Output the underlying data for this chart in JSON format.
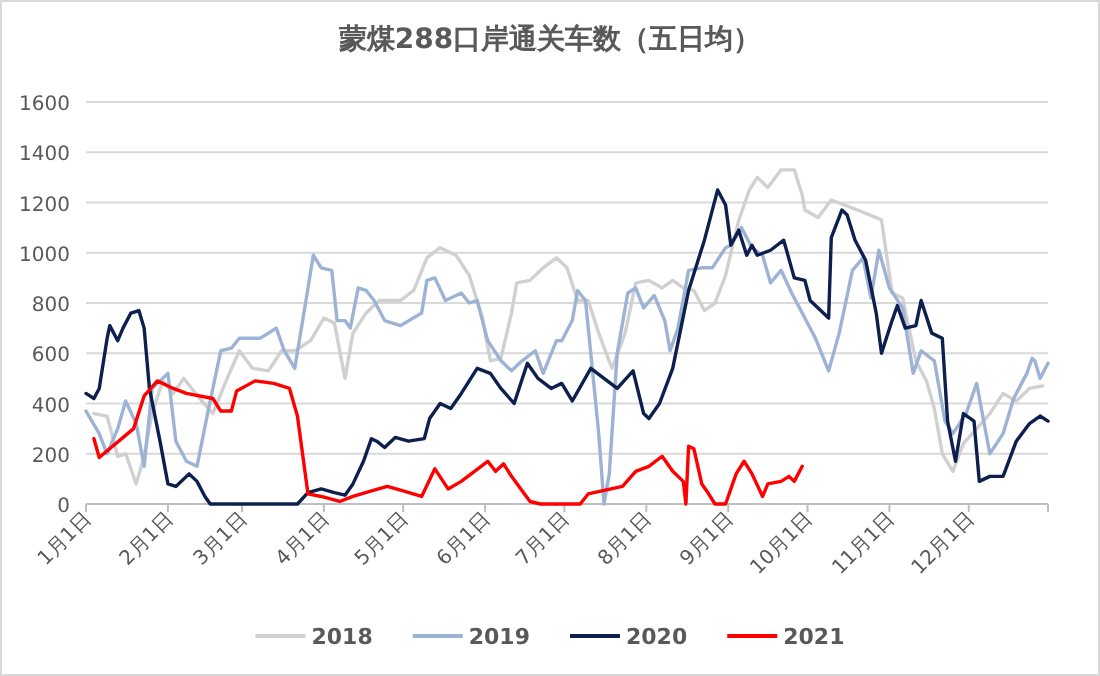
{
  "chart_data": {
    "type": "line",
    "title": "蒙煤288口岸通关车数（五日均）",
    "xlim": [
      "--01-01",
      "--12-31"
    ],
    "xticks": [
      {
        "value": "--01-01",
        "label": "1月1日"
      },
      {
        "value": "--02-01",
        "label": "2月1日"
      },
      {
        "value": "--03-01",
        "label": "3月1日"
      },
      {
        "value": "--04-01",
        "label": "4月1日"
      },
      {
        "value": "--05-01",
        "label": "5月1日"
      },
      {
        "value": "--06-01",
        "label": "6月1日"
      },
      {
        "value": "--07-01",
        "label": "7月1日"
      },
      {
        "value": "--08-01",
        "label": "8月1日"
      },
      {
        "value": "--09-01",
        "label": "9月1日"
      },
      {
        "value": "--10-01",
        "label": "10月1日"
      },
      {
        "value": "--11-01",
        "label": "11月1日"
      },
      {
        "value": "--12-01",
        "label": "12月1日"
      }
    ],
    "ylim": [
      0,
      1600
    ],
    "yticks": [
      0,
      200,
      400,
      600,
      800,
      1000,
      1200,
      1400,
      1600
    ],
    "grid": "y",
    "legend": "bottom",
    "marker": "none",
    "line_style": "solid",
    "series": [
      {
        "name": "2018",
        "color": "#d0d0d0",
        "x": [
          "--01-04",
          "--01-09",
          "--01-13",
          "--01-16",
          "--01-20",
          "--01-23",
          "--01-26",
          "--01-30",
          "--02-03",
          "--02-07",
          "--02-13",
          "--02-18",
          "--02-23",
          "--02-28",
          "--03-05",
          "--03-11",
          "--03-16",
          "--03-21",
          "--03-27",
          "--04-01",
          "--04-05",
          "--04-09",
          "--04-12",
          "--04-17",
          "--04-22",
          "--04-30",
          "--05-05",
          "--05-10",
          "--05-15",
          "--05-21",
          "--05-26",
          "--05-31",
          "--06-03",
          "--06-07",
          "--06-11",
          "--06-13",
          "--06-18",
          "--06-23",
          "--06-28",
          "--07-02",
          "--07-06",
          "--07-10",
          "--07-14",
          "--07-19",
          "--07-24",
          "--07-28",
          "--08-02",
          "--08-07",
          "--08-11",
          "--08-15",
          "--08-19",
          "--08-23",
          "--08-27",
          "--08-31",
          "--09-05",
          "--09-09",
          "--09-12",
          "--09-16",
          "--09-21",
          "--09-26",
          "--09-29",
          "--09-30",
          "--10-05",
          "--10-10",
          "--10-15",
          "--10-20",
          "--10-27",
          "--10-29",
          "--11-02",
          "--11-06",
          "--11-11",
          "--11-15",
          "--11-18",
          "--11-21",
          "--11-25",
          "--11-29",
          "--12-04",
          "--12-09",
          "--12-14",
          "--12-19",
          "--12-24",
          "--12-29"
        ],
        "values": [
          360,
          350,
          190,
          200,
          80,
          190,
          360,
          490,
          440,
          500,
          420,
          360,
          490,
          610,
          540,
          530,
          610,
          610,
          650,
          740,
          720,
          500,
          680,
          760,
          810,
          810,
          850,
          980,
          1020,
          990,
          910,
          740,
          570,
          580,
          760,
          880,
          890,
          940,
          980,
          940,
          810,
          810,
          680,
          540,
          680,
          880,
          890,
          860,
          890,
          860,
          850,
          770,
          800,
          910,
          1130,
          1250,
          1300,
          1260,
          1330,
          1330,
          1230,
          1170,
          1140,
          1210,
          1190,
          1170,
          1140,
          1130,
          840,
          820,
          570,
          490,
          380,
          200,
          130,
          240,
          300,
          360,
          440,
          410,
          460,
          470
        ]
      },
      {
        "name": "2019",
        "color": "#9db3d6",
        "x": [
          "--01-01",
          "--01-06",
          "--01-09",
          "--01-13",
          "--01-16",
          "--01-20",
          "--01-23",
          "--01-26",
          "--02-01",
          "--02-04",
          "--02-08",
          "--02-12",
          "--02-16",
          "--02-21",
          "--02-25",
          "--02-28",
          "--03-08",
          "--03-14",
          "--03-17",
          "--03-21",
          "--03-26",
          "--03-28",
          "--03-31",
          "--04-04",
          "--04-06",
          "--04-09",
          "--04-11",
          "--04-14",
          "--04-17",
          "--04-20",
          "--04-24",
          "--04-30",
          "--05-08",
          "--05-10",
          "--05-13",
          "--05-17",
          "--05-23",
          "--05-26",
          "--05-29",
          "--06-02",
          "--06-07",
          "--06-11",
          "--06-15",
          "--06-20",
          "--06-23",
          "--06-28",
          "--06-30",
          "--07-04",
          "--07-06",
          "--07-09",
          "--07-11",
          "--07-14",
          "--07-16",
          "--07-18",
          "--07-21",
          "--07-25",
          "--07-28",
          "--07-31",
          "--08-04",
          "--08-08",
          "--08-10",
          "--08-13",
          "--08-17",
          "--08-22",
          "--08-26",
          "--08-31",
          "--09-02",
          "--09-06",
          "--09-10",
          "--09-14",
          "--09-17",
          "--09-21",
          "--09-25",
          "--09-29",
          "--10-04",
          "--10-09",
          "--10-13",
          "--10-18",
          "--10-22",
          "--10-25",
          "--10-28",
          "--11-01",
          "--11-06",
          "--11-10",
          "--11-13",
          "--11-18",
          "--11-22",
          "--11-25",
          "--11-30",
          "--12-04",
          "--12-09",
          "--12-14",
          "--12-18",
          "--12-23",
          "--12-25",
          "--12-26",
          "--12-28",
          "--12-31"
        ],
        "values": [
          370,
          280,
          200,
          300,
          410,
          320,
          150,
          460,
          520,
          250,
          170,
          150,
          360,
          610,
          620,
          660,
          660,
          700,
          610,
          540,
          860,
          990,
          940,
          930,
          730,
          730,
          700,
          860,
          850,
          810,
          730,
          710,
          760,
          890,
          900,
          810,
          840,
          800,
          810,
          650,
          570,
          530,
          570,
          610,
          520,
          650,
          650,
          730,
          850,
          810,
          600,
          280,
          0,
          120,
          600,
          840,
          860,
          780,
          830,
          730,
          610,
          700,
          930,
          940,
          940,
          1020,
          1030,
          1100,
          1020,
          990,
          880,
          930,
          840,
          760,
          660,
          530,
          680,
          930,
          980,
          820,
          1010,
          860,
          780,
          520,
          610,
          570,
          330,
          280,
          360,
          480,
          200,
          280,
          420,
          520,
          580,
          570,
          500,
          560
        ]
      },
      {
        "name": "2020",
        "color": "#0d1f4f",
        "x": [
          "--01-01",
          "--01-04",
          "--01-06",
          "--01-09",
          "--01-10",
          "--01-13",
          "--01-15",
          "--01-18",
          "--01-21",
          "--01-23",
          "--01-25",
          "--01-29",
          "--02-01",
          "--02-04",
          "--02-09",
          "--02-12",
          "--02-15",
          "--02-17",
          "--03-22",
          "--03-26",
          "--03-31",
          "--04-05",
          "--04-09",
          "--04-12",
          "--04-16",
          "--04-19",
          "--04-21",
          "--04-24",
          "--04-28",
          "--05-03",
          "--05-09",
          "--05-11",
          "--05-15",
          "--05-19",
          "--05-23",
          "--05-29",
          "--06-03",
          "--06-07",
          "--06-12",
          "--06-17",
          "--06-21",
          "--06-26",
          "--06-30",
          "--07-04",
          "--07-11",
          "--07-21",
          "--07-27",
          "--07-31",
          "--08-02",
          "--08-06",
          "--08-11",
          "--08-17",
          "--08-23",
          "--08-28",
          "--08-31",
          "--09-02",
          "--09-05",
          "--09-08",
          "--09-10",
          "--09-12",
          "--09-17",
          "--09-22",
          "--09-26",
          "--09-30",
          "--10-02",
          "--10-07",
          "--10-09",
          "--10-10",
          "--10-14",
          "--10-16",
          "--10-19",
          "--10-23",
          "--10-27",
          "--10-29",
          "--11-02",
          "--11-04",
          "--11-07",
          "--11-11",
          "--11-13",
          "--11-17",
          "--11-21",
          "--11-23",
          "--11-26",
          "--11-29",
          "--12-03",
          "--12-05",
          "--12-09",
          "--12-14",
          "--12-19",
          "--12-24",
          "--12-28",
          "--12-31"
        ],
        "values": [
          440,
          420,
          460,
          660,
          710,
          650,
          700,
          760,
          770,
          700,
          460,
          250,
          80,
          70,
          120,
          90,
          30,
          0,
          0,
          45,
          60,
          45,
          35,
          80,
          170,
          260,
          250,
          225,
          265,
          250,
          260,
          340,
          400,
          380,
          440,
          540,
          520,
          460,
          400,
          560,
          500,
          460,
          480,
          410,
          540,
          460,
          530,
          360,
          340,
          400,
          540,
          850,
          1050,
          1250,
          1190,
          1030,
          1090,
          990,
          1030,
          990,
          1010,
          1050,
          900,
          890,
          810,
          760,
          740,
          1060,
          1170,
          1150,
          1050,
          970,
          760,
          600,
          730,
          790,
          700,
          710,
          810,
          680,
          660,
          330,
          170,
          360,
          330,
          90,
          110,
          110,
          250,
          320,
          350,
          330
        ]
      },
      {
        "name": "2021",
        "color": "#ff0000",
        "x": [
          "--01-04",
          "--01-06",
          "--01-19",
          "--01-23",
          "--01-28",
          "--02-03",
          "--02-08",
          "--02-18",
          "--02-21",
          "--02-25",
          "--02-27",
          "--03-06",
          "--03-13",
          "--03-19",
          "--03-22",
          "--03-26",
          "--03-31",
          "--04-07",
          "--04-12",
          "--04-20",
          "--04-25",
          "--04-30",
          "--05-08",
          "--05-13",
          "--05-18",
          "--05-23",
          "--06-02",
          "--06-05",
          "--06-08",
          "--06-11",
          "--06-18",
          "--06-22",
          "--07-07",
          "--07-10",
          "--07-23",
          "--07-28",
          "--08-02",
          "--08-07",
          "--08-11",
          "--08-15",
          "--08-16",
          "--08-17",
          "--08-19",
          "--08-22",
          "--08-24",
          "--08-27",
          "--08-31",
          "--09-04",
          "--09-07",
          "--09-10",
          "--09-14",
          "--09-16",
          "--09-21",
          "--09-24",
          "--09-26",
          "--09-29"
        ],
        "values": [
          260,
          185,
          300,
          430,
          490,
          460,
          440,
          420,
          370,
          370,
          450,
          490,
          480,
          460,
          350,
          40,
          30,
          10,
          30,
          55,
          70,
          55,
          30,
          140,
          60,
          90,
          170,
          130,
          160,
          110,
          10,
          0,
          0,
          40,
          70,
          130,
          150,
          190,
          130,
          90,
          0,
          230,
          220,
          80,
          50,
          0,
          0,
          120,
          170,
          120,
          30,
          80,
          90,
          110,
          90,
          150
        ]
      }
    ]
  }
}
